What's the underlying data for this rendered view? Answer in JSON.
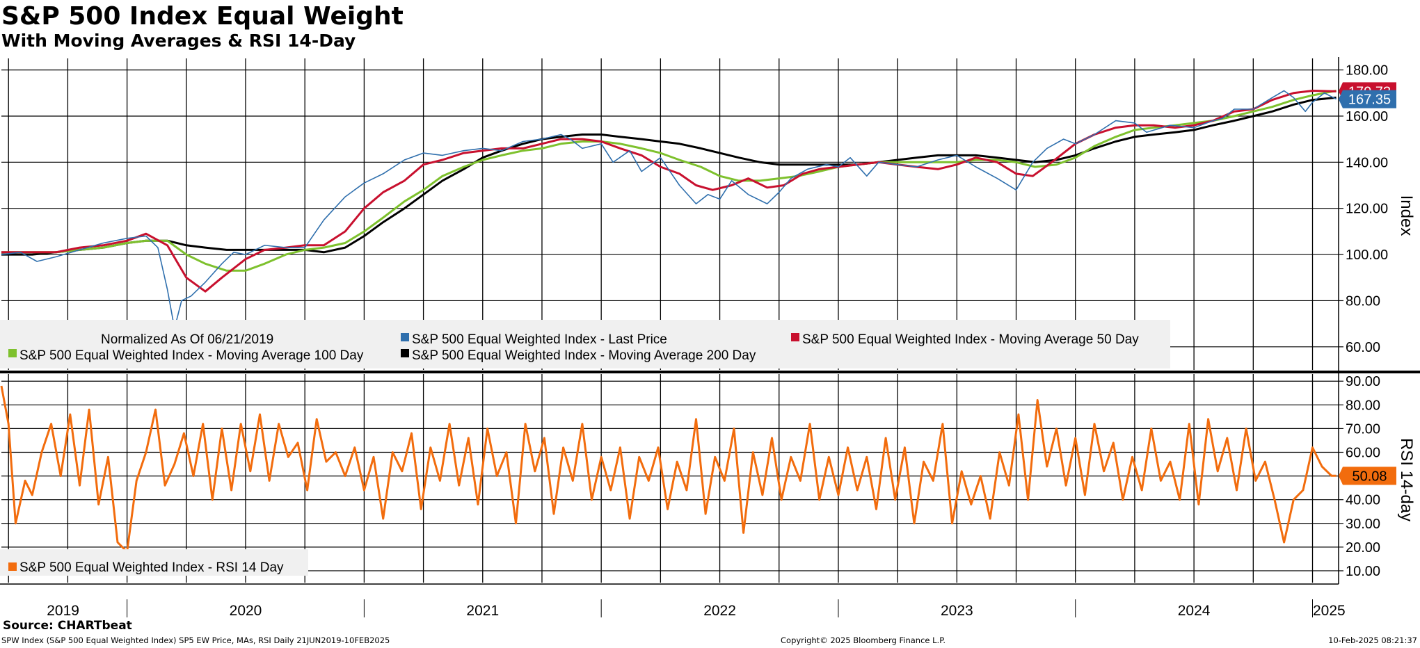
{
  "header": {
    "title": "S&P 500 Index Equal Weight",
    "subtitle": "With Moving Averages & RSI 14-Day"
  },
  "footer": {
    "source": "Source: CHARTbeat",
    "description": "SPW Index (S&P 500 Equal Weighted Index) SP5 EW Price, MAs, RSI  Daily 21JUN2019-10FEB2025",
    "copyright": "Copyright© 2025 Bloomberg Finance L.P.",
    "timestamp": "10-Feb-2025 08:21:37"
  },
  "chart_data": [
    {
      "type": "line",
      "panel": "price",
      "ylabel": "Index",
      "ylim": [
        50,
        185
      ],
      "yticks": [
        60,
        80,
        100,
        120,
        140,
        160,
        180
      ],
      "ytick_labels": [
        "60.00",
        "80.00",
        "100.00",
        "120.00",
        "140.00",
        "160.00",
        "180.00"
      ],
      "xlim": [
        2019.47,
        2025.11
      ],
      "grid": true,
      "legend_note": "Normalized As Of 06/21/2019",
      "legend_placement": "bottom-left",
      "series": [
        {
          "name": "S&P 500 Equal Weighted Index - Last Price",
          "color": "#2f6fad",
          "x": [
            2019.47,
            2019.55,
            2019.62,
            2019.7,
            2019.8,
            2019.9,
            2020.0,
            2020.08,
            2020.13,
            2020.17,
            2020.2,
            2020.23,
            2020.27,
            2020.33,
            2020.4,
            2020.45,
            2020.5,
            2020.58,
            2020.67,
            2020.75,
            2020.83,
            2020.92,
            2021.0,
            2021.08,
            2021.17,
            2021.25,
            2021.33,
            2021.42,
            2021.5,
            2021.58,
            2021.67,
            2021.75,
            2021.83,
            2021.87,
            2021.92,
            2022.0,
            2022.05,
            2022.12,
            2022.17,
            2022.25,
            2022.33,
            2022.4,
            2022.45,
            2022.5,
            2022.55,
            2022.62,
            2022.7,
            2022.75,
            2022.8,
            2022.87,
            2022.95,
            2023.0,
            2023.05,
            2023.12,
            2023.17,
            2023.25,
            2023.33,
            2023.42,
            2023.5,
            2023.58,
            2023.67,
            2023.75,
            2023.82,
            2023.88,
            2023.95,
            2024.0,
            2024.08,
            2024.17,
            2024.25,
            2024.3,
            2024.4,
            2024.5,
            2024.58,
            2024.62,
            2024.67,
            2024.75,
            2024.83,
            2024.88,
            2024.92,
            2024.97,
            2025.0,
            2025.05,
            2025.1
          ],
          "values": [
            100,
            101,
            97,
            99,
            102,
            105,
            107,
            108,
            103,
            85,
            68,
            80,
            82,
            88,
            96,
            101,
            100,
            104,
            103,
            103,
            115,
            125,
            131,
            135,
            141,
            144,
            143,
            145,
            146,
            145,
            149,
            150,
            152,
            150,
            146,
            148,
            140,
            145,
            136,
            142,
            130,
            122,
            126,
            124,
            132,
            126,
            122,
            127,
            133,
            137,
            139,
            138,
            142,
            134,
            140,
            139,
            138,
            141,
            143,
            138,
            133,
            128,
            140,
            146,
            150,
            148,
            152,
            158,
            157,
            153,
            156,
            155,
            158,
            159,
            163,
            163,
            168,
            171,
            168,
            162,
            166,
            170,
            167.35
          ]
        },
        {
          "name": "S&P 500 Equal Weighted Index - Moving Average 50 Day",
          "color": "#c8102e",
          "x": [
            2019.47,
            2019.6,
            2019.7,
            2019.8,
            2019.9,
            2020.0,
            2020.08,
            2020.17,
            2020.25,
            2020.33,
            2020.4,
            2020.5,
            2020.58,
            2020.67,
            2020.75,
            2020.83,
            2020.92,
            2021.0,
            2021.08,
            2021.17,
            2021.25,
            2021.33,
            2021.42,
            2021.5,
            2021.58,
            2021.67,
            2021.75,
            2021.83,
            2021.92,
            2022.0,
            2022.08,
            2022.17,
            2022.25,
            2022.33,
            2022.4,
            2022.47,
            2022.55,
            2022.62,
            2022.7,
            2022.77,
            2022.85,
            2022.92,
            2023.0,
            2023.08,
            2023.17,
            2023.25,
            2023.33,
            2023.42,
            2023.5,
            2023.58,
            2023.67,
            2023.75,
            2023.82,
            2023.9,
            2024.0,
            2024.08,
            2024.17,
            2024.25,
            2024.33,
            2024.42,
            2024.5,
            2024.58,
            2024.67,
            2024.75,
            2024.83,
            2024.92,
            2025.0,
            2025.1
          ],
          "values": [
            101,
            101,
            101,
            103,
            104,
            106,
            109,
            104,
            90,
            84,
            90,
            98,
            102,
            103,
            104,
            104,
            110,
            120,
            127,
            132,
            139,
            141,
            144,
            145,
            146,
            146,
            148,
            150,
            150,
            149,
            146,
            143,
            138,
            135,
            130,
            128,
            130,
            133,
            129,
            130,
            135,
            137,
            138,
            139,
            140,
            139,
            138,
            137,
            139,
            142,
            140,
            135,
            134,
            140,
            148,
            152,
            155,
            156,
            156,
            155,
            156,
            158,
            162,
            163,
            167,
            170,
            171,
            170.73
          ]
        },
        {
          "name": "S&P 500 Equal Weighted Index - Moving Average 100 Day",
          "color": "#7ec12d",
          "x": [
            2019.47,
            2019.6,
            2019.7,
            2019.8,
            2019.9,
            2020.0,
            2020.08,
            2020.17,
            2020.25,
            2020.33,
            2020.42,
            2020.5,
            2020.58,
            2020.67,
            2020.75,
            2020.83,
            2020.92,
            2021.0,
            2021.08,
            2021.17,
            2021.25,
            2021.33,
            2021.42,
            2021.5,
            2021.58,
            2021.67,
            2021.75,
            2021.83,
            2021.92,
            2022.0,
            2022.08,
            2022.17,
            2022.25,
            2022.33,
            2022.42,
            2022.5,
            2022.58,
            2022.67,
            2022.75,
            2022.83,
            2022.92,
            2023.0,
            2023.08,
            2023.17,
            2023.25,
            2023.33,
            2023.42,
            2023.5,
            2023.58,
            2023.67,
            2023.75,
            2023.83,
            2023.92,
            2024.0,
            2024.08,
            2024.17,
            2024.25,
            2024.33,
            2024.42,
            2024.5,
            2024.58,
            2024.67,
            2024.75,
            2024.83,
            2024.92,
            2025.0,
            2025.1
          ],
          "values": [
            101,
            101,
            101,
            102,
            103,
            105,
            106,
            106,
            100,
            96,
            93,
            93,
            96,
            100,
            102,
            103,
            105,
            110,
            116,
            123,
            128,
            134,
            138,
            141,
            143,
            145,
            146,
            148,
            149,
            149,
            148,
            146,
            144,
            141,
            138,
            134,
            132,
            132,
            133,
            134,
            136,
            138,
            139,
            140,
            140,
            140,
            140,
            140,
            141,
            141,
            140,
            138,
            139,
            142,
            147,
            151,
            154,
            155,
            156,
            157,
            158,
            160,
            162,
            164,
            167,
            169,
            171
          ]
        },
        {
          "name": "S&P 500 Equal Weighted Index - Moving Average 200 Day",
          "color": "#000000",
          "x": [
            2019.47,
            2019.6,
            2019.7,
            2019.8,
            2019.9,
            2020.0,
            2020.08,
            2020.17,
            2020.25,
            2020.33,
            2020.42,
            2020.5,
            2020.58,
            2020.67,
            2020.75,
            2020.83,
            2020.92,
            2021.0,
            2021.08,
            2021.17,
            2021.25,
            2021.33,
            2021.42,
            2021.5,
            2021.58,
            2021.67,
            2021.75,
            2021.83,
            2021.92,
            2022.0,
            2022.08,
            2022.17,
            2022.25,
            2022.33,
            2022.42,
            2022.5,
            2022.58,
            2022.67,
            2022.75,
            2022.83,
            2022.92,
            2023.0,
            2023.08,
            2023.17,
            2023.25,
            2023.33,
            2023.42,
            2023.5,
            2023.58,
            2023.67,
            2023.75,
            2023.83,
            2023.92,
            2024.0,
            2024.08,
            2024.17,
            2024.25,
            2024.33,
            2024.42,
            2024.5,
            2024.58,
            2024.67,
            2024.75,
            2024.83,
            2024.92,
            2025.0,
            2025.1
          ],
          "values": [
            100,
            100,
            101,
            102,
            103,
            105,
            106,
            106,
            104,
            103,
            102,
            102,
            102,
            102,
            102,
            101,
            103,
            108,
            114,
            120,
            126,
            132,
            137,
            142,
            145,
            148,
            150,
            151,
            152,
            152,
            151,
            150,
            149,
            148,
            146,
            144,
            142,
            140,
            139,
            139,
            139,
            139,
            139,
            140,
            141,
            142,
            143,
            143,
            143,
            142,
            141,
            140,
            141,
            143,
            146,
            149,
            151,
            152,
            153,
            154,
            156,
            158,
            160,
            162,
            165,
            167,
            168
          ]
        }
      ],
      "last_value_labels": [
        {
          "series": "S&P 500 Equal Weighted Index - Last Price",
          "text": "167.35",
          "color": "#2f6fad",
          "value": 167.35
        },
        {
          "series": "S&P 500 Equal Weighted Index - Moving Average 50 Day",
          "text": "170.73",
          "color": "#c8102e",
          "value": 170.73
        }
      ]
    },
    {
      "type": "line",
      "panel": "rsi",
      "ylabel": "RSI 14-day",
      "ylim": [
        5,
        93
      ],
      "yticks": [
        10,
        20,
        30,
        40,
        50,
        60,
        70,
        80,
        90
      ],
      "ytick_labels": [
        "10.00",
        "20.00",
        "30.00",
        "40.00",
        "50.00",
        "60.00",
        "70.00",
        "80.00",
        "90.00"
      ],
      "xlim": [
        2019.47,
        2025.11
      ],
      "grid": true,
      "legend_placement": "bottom-left",
      "series": [
        {
          "name": "S&P 500 Equal Weighted Index - RSI 14 Day",
          "color": "#f26c0d",
          "x": [
            2019.47,
            2019.5,
            2019.53,
            2019.57,
            2019.6,
            2019.64,
            2019.68,
            2019.72,
            2019.76,
            2019.8,
            2019.84,
            2019.88,
            2019.92,
            2019.96,
            2020.0,
            2020.04,
            2020.08,
            2020.12,
            2020.16,
            2020.2,
            2020.24,
            2020.28,
            2020.32,
            2020.36,
            2020.4,
            2020.44,
            2020.48,
            2020.52,
            2020.56,
            2020.6,
            2020.64,
            2020.68,
            2020.72,
            2020.76,
            2020.8,
            2020.84,
            2020.88,
            2020.92,
            2020.96,
            2021.0,
            2021.04,
            2021.08,
            2021.12,
            2021.16,
            2021.2,
            2021.24,
            2021.28,
            2021.32,
            2021.36,
            2021.4,
            2021.44,
            2021.48,
            2021.52,
            2021.56,
            2021.6,
            2021.64,
            2021.68,
            2021.72,
            2021.76,
            2021.8,
            2021.84,
            2021.88,
            2021.92,
            2021.96,
            2022.0,
            2022.04,
            2022.08,
            2022.12,
            2022.16,
            2022.2,
            2022.24,
            2022.28,
            2022.32,
            2022.36,
            2022.4,
            2022.44,
            2022.48,
            2022.52,
            2022.56,
            2022.6,
            2022.64,
            2022.68,
            2022.72,
            2022.76,
            2022.8,
            2022.84,
            2022.88,
            2022.92,
            2022.96,
            2023.0,
            2023.04,
            2023.08,
            2023.12,
            2023.16,
            2023.2,
            2023.24,
            2023.28,
            2023.32,
            2023.36,
            2023.4,
            2023.44,
            2023.48,
            2023.52,
            2023.56,
            2023.6,
            2023.64,
            2023.68,
            2023.72,
            2023.76,
            2023.8,
            2023.84,
            2023.88,
            2023.92,
            2023.96,
            2024.0,
            2024.04,
            2024.08,
            2024.12,
            2024.16,
            2024.2,
            2024.24,
            2024.28,
            2024.32,
            2024.36,
            2024.4,
            2024.44,
            2024.48,
            2024.52,
            2024.56,
            2024.6,
            2024.64,
            2024.68,
            2024.72,
            2024.76,
            2024.8,
            2024.84,
            2024.88,
            2024.92,
            2024.96,
            2025.0,
            2025.04,
            2025.08,
            2025.1
          ],
          "values": [
            88,
            72,
            30,
            48,
            42,
            60,
            72,
            50,
            76,
            46,
            78,
            38,
            58,
            22,
            18,
            48,
            60,
            78,
            46,
            55,
            68,
            50,
            72,
            40,
            70,
            44,
            72,
            52,
            76,
            48,
            72,
            58,
            64,
            44,
            74,
            56,
            60,
            50,
            62,
            44,
            58,
            32,
            60,
            52,
            68,
            36,
            62,
            48,
            72,
            46,
            66,
            38,
            70,
            50,
            60,
            30,
            72,
            52,
            66,
            34,
            62,
            48,
            72,
            40,
            58,
            44,
            62,
            32,
            58,
            48,
            62,
            36,
            56,
            44,
            74,
            34,
            58,
            48,
            70,
            26,
            60,
            42,
            66,
            40,
            58,
            48,
            72,
            40,
            58,
            42,
            62,
            44,
            58,
            36,
            66,
            40,
            62,
            30,
            56,
            48,
            72,
            30,
            52,
            38,
            50,
            32,
            60,
            46,
            76,
            40,
            82,
            54,
            70,
            46,
            66,
            42,
            72,
            52,
            64,
            40,
            58,
            44,
            70,
            48,
            56,
            40,
            72,
            38,
            74,
            52,
            66,
            44,
            70,
            48,
            56,
            40,
            22,
            40,
            44,
            62,
            54,
            50.08,
            50.08
          ],
          "last_value_label": {
            "text": "50.08",
            "value": 50.08
          }
        }
      ]
    }
  ],
  "x_axis": {
    "year_labels": [
      "2019",
      "2020",
      "2021",
      "2022",
      "2023",
      "2024",
      "2025"
    ],
    "year_label_positions": [
      2019.73,
      2020.5,
      2021.5,
      2022.5,
      2023.5,
      2024.5,
      2025.07
    ],
    "year_boundaries": [
      2020.0,
      2021.0,
      2022.0,
      2023.0,
      2024.0,
      2025.0
    ],
    "quarter_gridlines": [
      2019.5,
      2019.75,
      2020.0,
      2020.25,
      2020.5,
      2020.75,
      2021.0,
      2021.25,
      2021.5,
      2021.75,
      2022.0,
      2022.25,
      2022.5,
      2022.75,
      2023.0,
      2023.25,
      2023.5,
      2023.75,
      2024.0,
      2024.25,
      2024.5,
      2024.75,
      2025.0
    ]
  }
}
